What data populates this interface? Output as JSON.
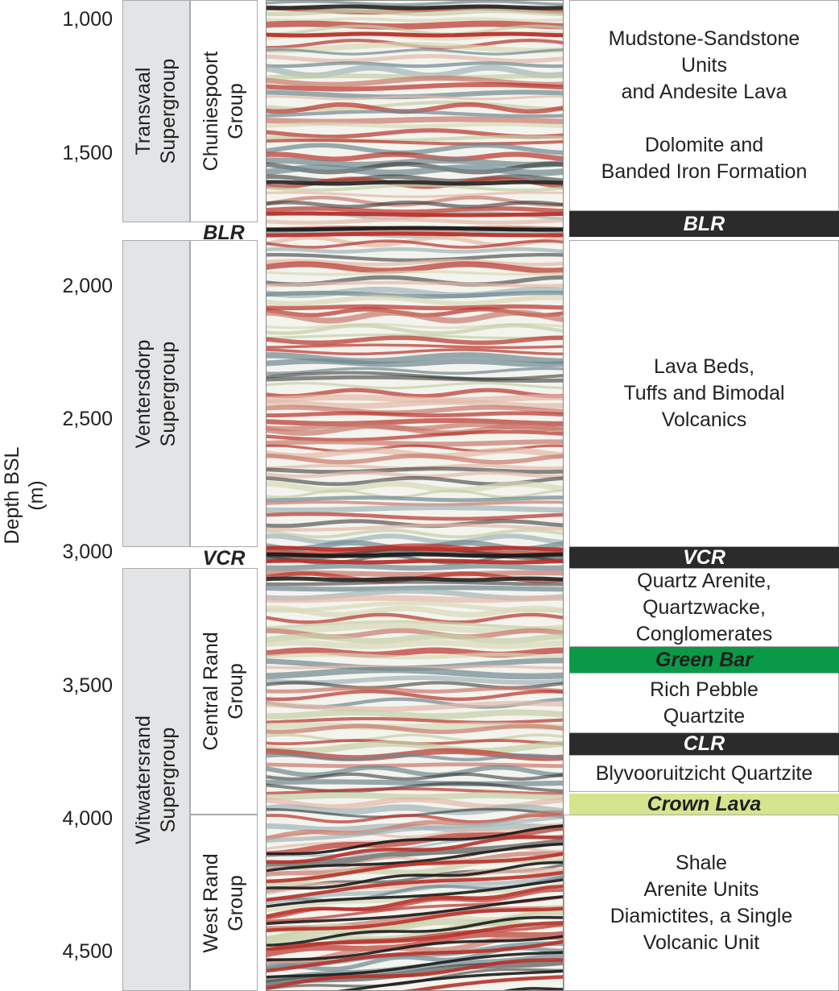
{
  "axis": {
    "title": "Depth BSL (m)",
    "ticks": [
      "1,000",
      "1,500",
      "2,000",
      "2,500",
      "3,000",
      "3,500",
      "4,000",
      "4,500"
    ]
  },
  "supergroups": [
    {
      "lines": [
        "Transvaal",
        "Supergroup"
      ]
    },
    {
      "lines": [
        "Ventersdorp",
        "Supergroup"
      ]
    },
    {
      "lines": [
        "Witwatersrand",
        "Supergroup"
      ]
    }
  ],
  "groups": [
    {
      "lines": [
        "Chuniespoort",
        "Group"
      ]
    },
    {
      "lines": [
        "Central Rand",
        "Group"
      ]
    },
    {
      "lines": [
        "West Rand",
        "Group"
      ]
    }
  ],
  "left_markers": [
    "BLR",
    "VCR"
  ],
  "descriptions": {
    "transvaal_lines": [
      "Mudstone-Sandstone",
      "Units",
      "and Andesite Lava",
      "",
      "Dolomite and",
      "Banded Iron Formation"
    ],
    "ventersdorp_lines": [
      "Lava Beds,",
      "Tuffs and Bimodal",
      "Volcanics"
    ],
    "central_rand_upper_lines": [
      "Quartz Arenite,",
      "Quartzwacke,",
      "Conglomerates"
    ],
    "rich_pebble_lines": [
      "Rich Pebble",
      "Quartzite"
    ],
    "blyvooruitzicht": "Blyvooruitzicht Quartzite",
    "west_rand_lines": [
      "Shale",
      "Arenite Units",
      "Diamictites, a Single",
      "Volcanic Unit"
    ]
  },
  "bands": {
    "blr": "BLR",
    "vcr": "VCR",
    "green_bar": "Green Bar",
    "clr": "CLR",
    "crown_lava": "Crown Lava"
  },
  "colors": {
    "marker_band": "#2b2b2b",
    "green_bar": "#0a9a47",
    "crown_lava": "#d5e58e",
    "supergroup_fill": "#e3e4e6",
    "seismic_red": "#b8322a",
    "seismic_dark": "#1a1a1a"
  }
}
